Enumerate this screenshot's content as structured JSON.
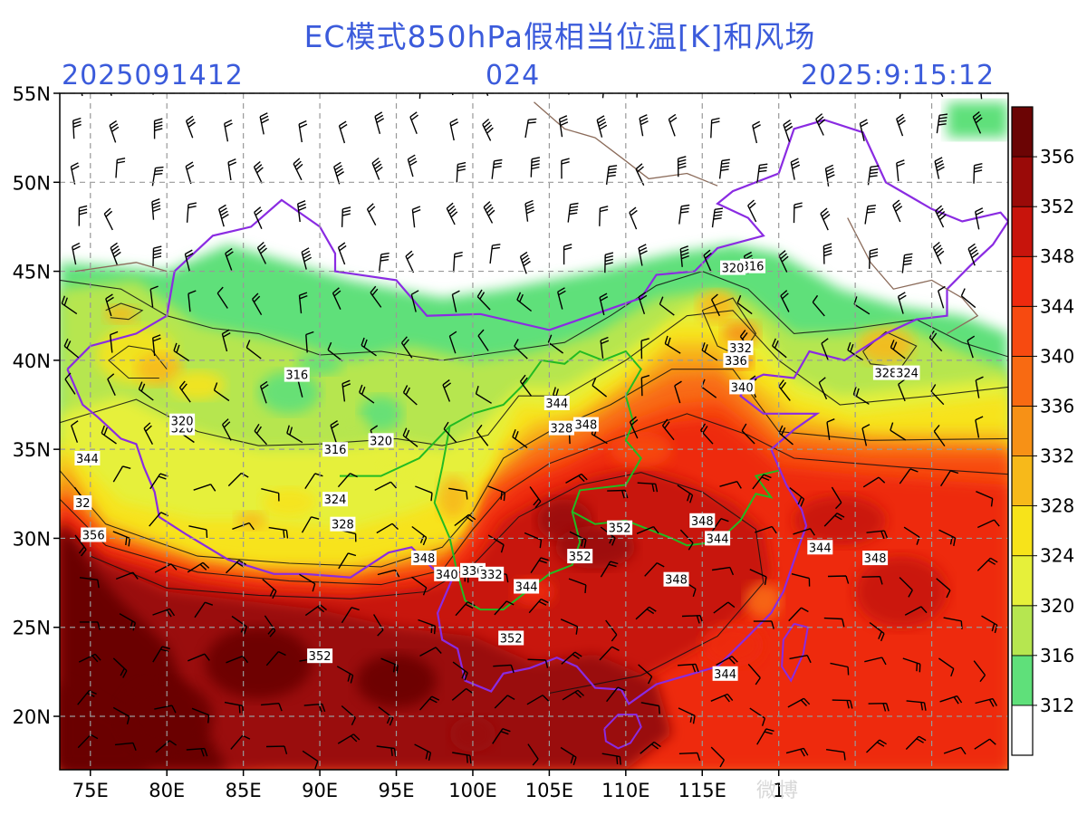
{
  "header": {
    "title": "EC模式850hPa假相当位温[K]和风场",
    "init_time": "2025091412",
    "forecast_hour": "024",
    "valid_time": "2025:9:15:12"
  },
  "map": {
    "lon_range": [
      73,
      135
    ],
    "lat_range": [
      17,
      55
    ],
    "lon_ticks": [
      {
        "value": 75,
        "label": "75E"
      },
      {
        "value": 80,
        "label": "80E"
      },
      {
        "value": 85,
        "label": "85E"
      },
      {
        "value": 90,
        "label": "90E"
      },
      {
        "value": 95,
        "label": "95E"
      },
      {
        "value": 100,
        "label": "100E"
      },
      {
        "value": 105,
        "label": "105E"
      },
      {
        "value": 110,
        "label": "110E"
      },
      {
        "value": 115,
        "label": "115E"
      },
      {
        "value": 120,
        "label": "1"
      }
    ],
    "lat_ticks": [
      {
        "value": 20,
        "label": "20N"
      },
      {
        "value": 25,
        "label": "25N"
      },
      {
        "value": 30,
        "label": "30N"
      },
      {
        "value": 35,
        "label": "35N"
      },
      {
        "value": 40,
        "label": "40N"
      },
      {
        "value": 45,
        "label": "45N"
      },
      {
        "value": 50,
        "label": "50N"
      },
      {
        "value": 55,
        "label": "55N"
      }
    ],
    "grid": true,
    "contour_labels": [
      {
        "lon": 74.5,
        "lat": 32.0,
        "text": "32"
      },
      {
        "lon": 74.8,
        "lat": 34.5,
        "text": "344"
      },
      {
        "lon": 75.2,
        "lat": 30.2,
        "text": "356"
      },
      {
        "lon": 81.0,
        "lat": 36.2,
        "text": "320"
      },
      {
        "lon": 81.0,
        "lat": 36.6,
        "text": "320"
      },
      {
        "lon": 88.5,
        "lat": 39.2,
        "text": "316"
      },
      {
        "lon": 91.0,
        "lat": 35.0,
        "text": "316"
      },
      {
        "lon": 94.0,
        "lat": 35.5,
        "text": "320"
      },
      {
        "lon": 91.0,
        "lat": 32.2,
        "text": "324"
      },
      {
        "lon": 91.5,
        "lat": 30.8,
        "text": "328"
      },
      {
        "lon": 96.8,
        "lat": 28.9,
        "text": "348"
      },
      {
        "lon": 98.3,
        "lat": 28.0,
        "text": "340"
      },
      {
        "lon": 100.0,
        "lat": 28.2,
        "text": "336"
      },
      {
        "lon": 101.2,
        "lat": 28.0,
        "text": "332"
      },
      {
        "lon": 103.5,
        "lat": 27.3,
        "text": "344"
      },
      {
        "lon": 105.5,
        "lat": 37.6,
        "text": "344"
      },
      {
        "lon": 105.8,
        "lat": 36.2,
        "text": "328"
      },
      {
        "lon": 107.4,
        "lat": 36.4,
        "text": "348"
      },
      {
        "lon": 107.0,
        "lat": 29.0,
        "text": "352"
      },
      {
        "lon": 109.6,
        "lat": 30.6,
        "text": "352"
      },
      {
        "lon": 115.0,
        "lat": 31.0,
        "text": "348"
      },
      {
        "lon": 113.3,
        "lat": 27.7,
        "text": "348"
      },
      {
        "lon": 116.0,
        "lat": 30.0,
        "text": "344"
      },
      {
        "lon": 117.5,
        "lat": 40.7,
        "text": "332"
      },
      {
        "lon": 117.2,
        "lat": 40.0,
        "text": "336"
      },
      {
        "lon": 117.6,
        "lat": 38.5,
        "text": "340"
      },
      {
        "lon": 118.3,
        "lat": 45.3,
        "text": "316"
      },
      {
        "lon": 117.0,
        "lat": 45.2,
        "text": "320"
      },
      {
        "lon": 122.7,
        "lat": 29.5,
        "text": "344"
      },
      {
        "lon": 126.3,
        "lat": 28.9,
        "text": "348"
      },
      {
        "lon": 127.0,
        "lat": 39.3,
        "text": "328"
      },
      {
        "lon": 128.4,
        "lat": 39.3,
        "text": "324"
      },
      {
        "lon": 102.5,
        "lat": 24.4,
        "text": "352"
      },
      {
        "lon": 90.0,
        "lat": 23.4,
        "text": "352"
      },
      {
        "lon": 116.5,
        "lat": 22.4,
        "text": "344"
      }
    ]
  },
  "colorbar": {
    "levels": [
      312,
      316,
      320,
      324,
      328,
      332,
      336,
      340,
      344,
      348,
      352,
      356
    ],
    "colors": [
      "#ffffff",
      "#5fe07a",
      "#b6e650",
      "#e6f03a",
      "#f7e31a",
      "#f7b91a",
      "#f79116",
      "#f86a12",
      "#f74a10",
      "#ee2a0e",
      "#c8140c",
      "#9a0a08",
      "#6b0404"
    ]
  },
  "watermark": "微博"
}
